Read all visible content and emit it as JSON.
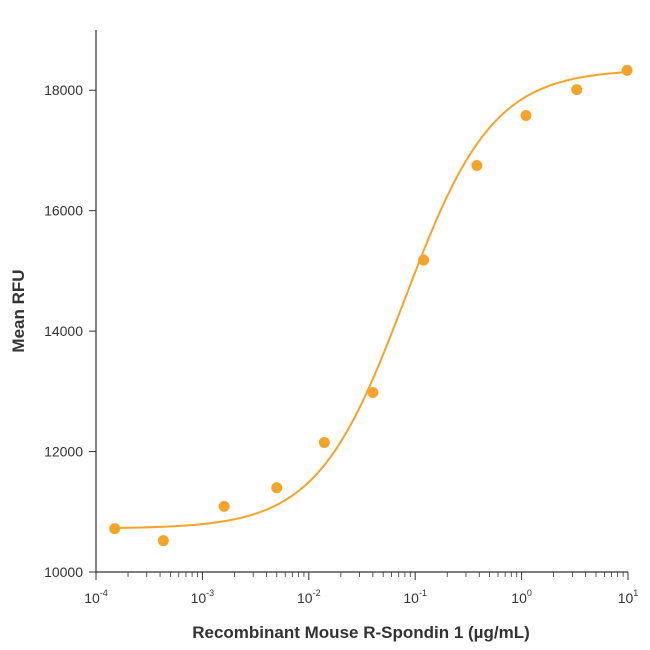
{
  "chart_data": {
    "type": "scatter",
    "title": "",
    "xlabel": "Recombinant Mouse R-Spondin 1 (µg/mL)",
    "ylabel": "Mean RFU",
    "x_scale": "log",
    "xlim": [
      0.0001,
      10
    ],
    "ylim": [
      10000,
      19000
    ],
    "grid": false,
    "colors": {
      "series": "#f5a42a",
      "axis": "#333333"
    },
    "x_ticks": [
      {
        "value": 0.0001,
        "base": "10",
        "exp": "-4"
      },
      {
        "value": 0.001,
        "base": "10",
        "exp": "-3"
      },
      {
        "value": 0.01,
        "base": "10",
        "exp": "-2"
      },
      {
        "value": 0.1,
        "base": "10",
        "exp": "-1"
      },
      {
        "value": 1,
        "base": "10",
        "exp": "0"
      },
      {
        "value": 10,
        "base": "10",
        "exp": "1"
      }
    ],
    "y_ticks": [
      {
        "value": 10000,
        "label": "10000"
      },
      {
        "value": 12000,
        "label": "12000"
      },
      {
        "value": 14000,
        "label": "14000"
      },
      {
        "value": 16000,
        "label": "16000"
      },
      {
        "value": 18000,
        "label": "18000"
      }
    ],
    "series": [
      {
        "x": [
          0.00015,
          0.00043,
          0.0016,
          0.005,
          0.014,
          0.04,
          0.12,
          0.38,
          1.1,
          3.3,
          9.8
        ],
        "y": [
          10720,
          10520,
          11090,
          11400,
          12150,
          12980,
          15180,
          16750,
          17580,
          18010,
          18330
        ]
      }
    ],
    "fit_curve": {
      "model": "4PL",
      "bottom": 10720,
      "top": 18350,
      "ec50": 0.08,
      "hill": 1.05
    }
  }
}
